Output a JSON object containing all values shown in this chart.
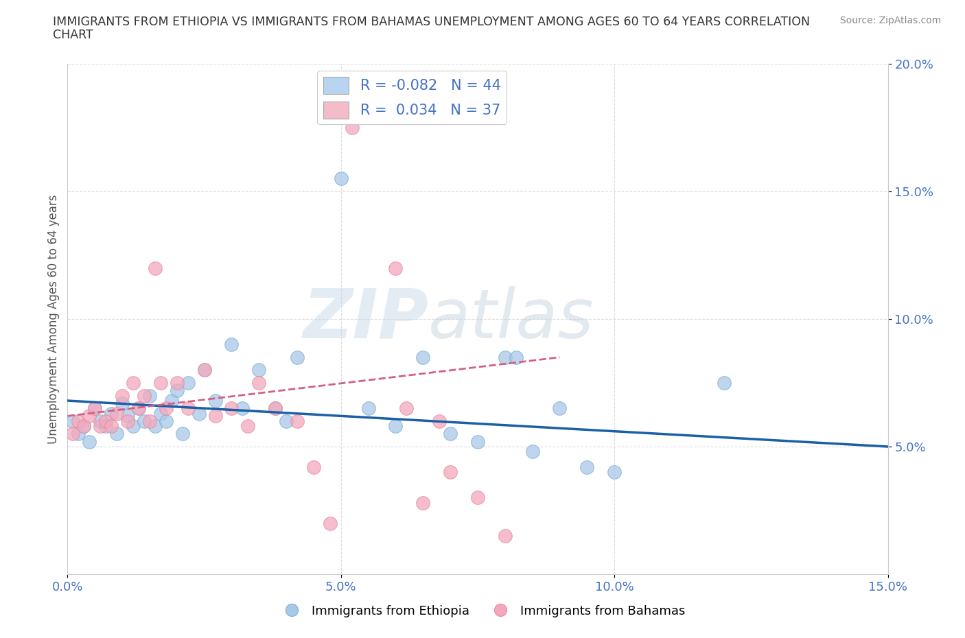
{
  "title_line1": "IMMIGRANTS FROM ETHIOPIA VS IMMIGRANTS FROM BAHAMAS UNEMPLOYMENT AMONG AGES 60 TO 64 YEARS CORRELATION",
  "title_line2": "CHART",
  "source_text": "Source: ZipAtlas.com",
  "ylabel": "Unemployment Among Ages 60 to 64 years",
  "xlim": [
    0.0,
    0.15
  ],
  "ylim": [
    0.0,
    0.2
  ],
  "xticks": [
    0.0,
    0.05,
    0.1,
    0.15
  ],
  "yticks": [
    0.05,
    0.1,
    0.15,
    0.2
  ],
  "xticklabels": [
    "0.0%",
    "5.0%",
    "10.0%",
    "15.0%"
  ],
  "yticklabels_right": [
    "5.0%",
    "10.0%",
    "15.0%",
    "20.0%"
  ],
  "watermark_part1": "ZIP",
  "watermark_part2": "atlas",
  "ethiopia_color": "#a8c8e8",
  "bahamas_color": "#f4a8bc",
  "ethiopia_edge_color": "#7bafd4",
  "bahamas_edge_color": "#e8889c",
  "ethiopia_line_color": "#1a5fa8",
  "bahamas_line_color": "#d46080",
  "R_ethiopia": -0.082,
  "N_ethiopia": 44,
  "R_bahamas": 0.034,
  "N_bahamas": 37,
  "ethiopia_scatter_x": [
    0.001,
    0.002,
    0.003,
    0.004,
    0.005,
    0.006,
    0.007,
    0.008,
    0.009,
    0.01,
    0.011,
    0.012,
    0.013,
    0.014,
    0.015,
    0.016,
    0.017,
    0.018,
    0.019,
    0.02,
    0.021,
    0.022,
    0.024,
    0.025,
    0.027,
    0.03,
    0.032,
    0.035,
    0.038,
    0.04,
    0.042,
    0.05,
    0.055,
    0.06,
    0.065,
    0.07,
    0.075,
    0.08,
    0.082,
    0.085,
    0.09,
    0.095,
    0.1,
    0.12
  ],
  "ethiopia_scatter_y": [
    0.06,
    0.055,
    0.058,
    0.052,
    0.065,
    0.06,
    0.058,
    0.063,
    0.055,
    0.067,
    0.062,
    0.058,
    0.065,
    0.06,
    0.07,
    0.058,
    0.063,
    0.06,
    0.068,
    0.072,
    0.055,
    0.075,
    0.063,
    0.08,
    0.068,
    0.09,
    0.065,
    0.08,
    0.065,
    0.06,
    0.085,
    0.155,
    0.065,
    0.058,
    0.085,
    0.055,
    0.052,
    0.085,
    0.085,
    0.048,
    0.065,
    0.042,
    0.04,
    0.075
  ],
  "bahamas_scatter_x": [
    0.001,
    0.002,
    0.003,
    0.004,
    0.005,
    0.006,
    0.007,
    0.008,
    0.009,
    0.01,
    0.011,
    0.012,
    0.013,
    0.014,
    0.015,
    0.016,
    0.017,
    0.018,
    0.02,
    0.022,
    0.025,
    0.027,
    0.03,
    0.033,
    0.035,
    0.038,
    0.042,
    0.045,
    0.048,
    0.052,
    0.06,
    0.062,
    0.065,
    0.068,
    0.07,
    0.075,
    0.08
  ],
  "bahamas_scatter_y": [
    0.055,
    0.06,
    0.058,
    0.062,
    0.065,
    0.058,
    0.06,
    0.058,
    0.063,
    0.07,
    0.06,
    0.075,
    0.065,
    0.07,
    0.06,
    0.12,
    0.075,
    0.065,
    0.075,
    0.065,
    0.08,
    0.062,
    0.065,
    0.058,
    0.075,
    0.065,
    0.06,
    0.042,
    0.02,
    0.175,
    0.12,
    0.065,
    0.028,
    0.06,
    0.04,
    0.03,
    0.015
  ],
  "legend_labels": [
    "Immigrants from Ethiopia",
    "Immigrants from Bahamas"
  ],
  "legend_box_color_ethiopia": "#b8d4f0",
  "legend_box_color_bahamas": "#f4bcc8",
  "background_color": "#ffffff",
  "grid_color": "#cccccc"
}
